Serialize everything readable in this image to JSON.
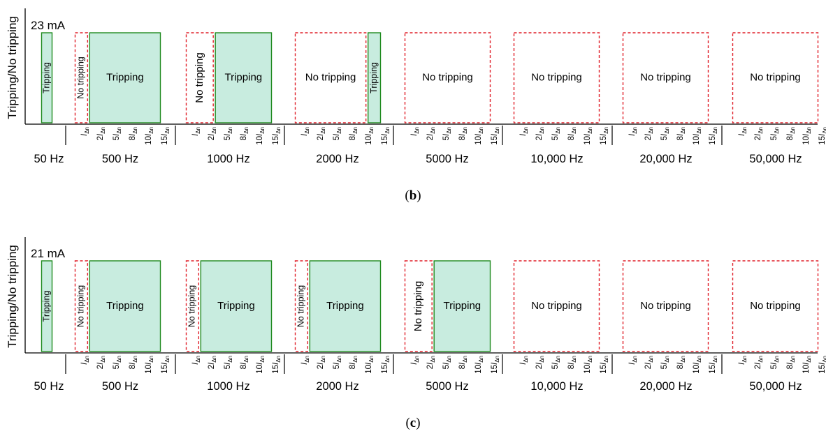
{
  "theme": {
    "trip_fill": "#c8ecdf",
    "trip_stroke": "#1f8a1f",
    "notrip_stroke": "#e0202a"
  },
  "chart_data": [
    {
      "type": "bar",
      "panel_label": "b",
      "ylabel": "Tripping/No tripping",
      "current": "23 mA",
      "multiples": [
        "I",
        "2I",
        "5I",
        "8I",
        "10I",
        "15I"
      ],
      "multiple_subscript": "Δn",
      "groups": [
        {
          "freq": "50 Hz",
          "segments": [
            {
              "state": "Tripping",
              "from": "I",
              "to": "I"
            }
          ]
        },
        {
          "freq": "500 Hz",
          "segments": [
            {
              "state": "No tripping",
              "from": "I",
              "to": "I"
            },
            {
              "state": "Tripping",
              "from": "2I",
              "to": "15I"
            }
          ]
        },
        {
          "freq": "1000 Hz",
          "segments": [
            {
              "state": "No tripping",
              "from": "I",
              "to": "2I"
            },
            {
              "state": "Tripping",
              "from": "5I",
              "to": "15I"
            }
          ]
        },
        {
          "freq": "2000 Hz",
          "segments": [
            {
              "state": "No tripping",
              "from": "I",
              "to": "10I"
            },
            {
              "state": "Tripping",
              "from": "15I",
              "to": "15I"
            }
          ]
        },
        {
          "freq": "5000 Hz",
          "segments": [
            {
              "state": "No tripping",
              "from": "I",
              "to": "15I"
            }
          ]
        },
        {
          "freq": "10,000 Hz",
          "segments": [
            {
              "state": "No tripping",
              "from": "I",
              "to": "15I"
            }
          ]
        },
        {
          "freq": "20,000 Hz",
          "segments": [
            {
              "state": "No tripping",
              "from": "I",
              "to": "15I"
            }
          ]
        },
        {
          "freq": "50,000 Hz",
          "segments": [
            {
              "state": "No tripping",
              "from": "I",
              "to": "15I"
            }
          ]
        }
      ]
    },
    {
      "type": "bar",
      "panel_label": "c",
      "ylabel": "Tripping/No tripping",
      "current": "21 mA",
      "multiples": [
        "I",
        "2I",
        "5I",
        "8I",
        "10I",
        "15I"
      ],
      "multiple_subscript": "Δn",
      "groups": [
        {
          "freq": "50 Hz",
          "segments": [
            {
              "state": "Tripping",
              "from": "I",
              "to": "I"
            }
          ]
        },
        {
          "freq": "500 Hz",
          "segments": [
            {
              "state": "No tripping",
              "from": "I",
              "to": "I"
            },
            {
              "state": "Tripping",
              "from": "2I",
              "to": "15I"
            }
          ]
        },
        {
          "freq": "1000 Hz",
          "segments": [
            {
              "state": "No tripping",
              "from": "I",
              "to": "I"
            },
            {
              "state": "Tripping",
              "from": "2I",
              "to": "15I"
            }
          ]
        },
        {
          "freq": "2000 Hz",
          "segments": [
            {
              "state": "No tripping",
              "from": "I",
              "to": "I"
            },
            {
              "state": "Tripping",
              "from": "2I",
              "to": "15I"
            }
          ]
        },
        {
          "freq": "5000 Hz",
          "segments": [
            {
              "state": "No tripping",
              "from": "I",
              "to": "2I"
            },
            {
              "state": "Tripping",
              "from": "5I",
              "to": "15I"
            }
          ]
        },
        {
          "freq": "10,000 Hz",
          "segments": [
            {
              "state": "No tripping",
              "from": "I",
              "to": "15I"
            }
          ]
        },
        {
          "freq": "20,000 Hz",
          "segments": [
            {
              "state": "No tripping",
              "from": "I",
              "to": "15I"
            }
          ]
        },
        {
          "freq": "50,000 Hz",
          "segments": [
            {
              "state": "No tripping",
              "from": "I",
              "to": "15I"
            }
          ]
        }
      ]
    }
  ]
}
